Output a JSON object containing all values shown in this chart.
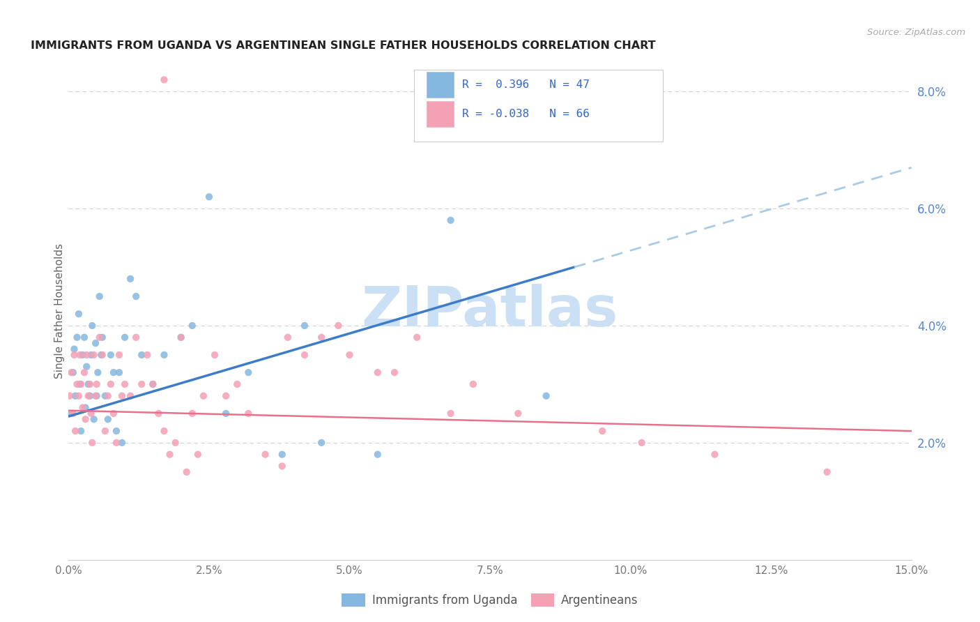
{
  "title": "IMMIGRANTS FROM UGANDA VS ARGENTINEAN SINGLE FATHER HOUSEHOLDS CORRELATION CHART",
  "source": "Source: ZipAtlas.com",
  "ylabel": "Single Father Households",
  "right_yticks": [
    "2.0%",
    "4.0%",
    "6.0%",
    "8.0%"
  ],
  "right_ytick_vals": [
    2.0,
    4.0,
    6.0,
    8.0
  ],
  "legend_label1": "Immigrants from Uganda",
  "legend_label2": "Argentineans",
  "R1": 0.396,
  "N1": 47,
  "R2": -0.038,
  "N2": 66,
  "color_blue": "#85b8e0",
  "color_pink": "#f4a0b5",
  "color_blue_line": "#3d7cc9",
  "color_pink_line": "#e8708a",
  "color_blue_dashed": "#a8cce8",
  "watermark": "ZIPatlas",
  "watermark_color": "#cce0f5",
  "background_color": "#ffffff",
  "xmin": 0.0,
  "xmax": 15.0,
  "ymin": 0.0,
  "ymax": 8.5,
  "xtick_vals": [
    0.0,
    2.5,
    5.0,
    7.5,
    10.0,
    12.5,
    15.0
  ],
  "xtick_labels": [
    "0.0%",
    "2.5%",
    "5.0%",
    "7.5%",
    "10.0%",
    "12.5%",
    "15.0%"
  ],
  "blue_line_x0": 0.0,
  "blue_line_y0": 2.45,
  "blue_line_x1": 9.0,
  "blue_line_y1": 5.0,
  "blue_dash_x0": 9.0,
  "blue_dash_y0": 5.0,
  "blue_dash_x1": 15.0,
  "blue_dash_y1": 6.7,
  "pink_line_x0": 0.0,
  "pink_line_y0": 2.55,
  "pink_line_x1": 15.0,
  "pink_line_y1": 2.2,
  "blue_pts_x": [
    0.05,
    0.08,
    0.1,
    0.12,
    0.15,
    0.18,
    0.2,
    0.22,
    0.25,
    0.28,
    0.3,
    0.32,
    0.35,
    0.38,
    0.4,
    0.42,
    0.45,
    0.48,
    0.5,
    0.52,
    0.55,
    0.58,
    0.6,
    0.65,
    0.7,
    0.75,
    0.8,
    0.85,
    0.9,
    0.95,
    1.0,
    1.1,
    1.2,
    1.3,
    1.5,
    1.7,
    2.0,
    2.2,
    2.5,
    2.8,
    3.2,
    3.8,
    4.5,
    5.5,
    6.8,
    8.5,
    4.2
  ],
  "blue_pts_y": [
    2.5,
    3.2,
    3.6,
    2.8,
    3.8,
    4.2,
    3.0,
    2.2,
    3.5,
    3.8,
    2.6,
    3.3,
    3.0,
    2.8,
    3.5,
    4.0,
    2.4,
    3.7,
    2.8,
    3.2,
    4.5,
    3.5,
    3.8,
    2.8,
    2.4,
    3.5,
    3.2,
    2.2,
    3.2,
    2.0,
    3.8,
    4.8,
    4.5,
    3.5,
    3.0,
    3.5,
    3.8,
    4.0,
    6.2,
    2.5,
    3.2,
    1.8,
    2.0,
    1.8,
    5.8,
    2.8,
    4.0
  ],
  "pink_pts_x": [
    0.02,
    0.05,
    0.08,
    0.1,
    0.12,
    0.15,
    0.18,
    0.2,
    0.22,
    0.25,
    0.28,
    0.3,
    0.32,
    0.35,
    0.38,
    0.4,
    0.42,
    0.45,
    0.48,
    0.5,
    0.55,
    0.6,
    0.65,
    0.7,
    0.75,
    0.8,
    0.85,
    0.9,
    0.95,
    1.0,
    1.1,
    1.2,
    1.3,
    1.4,
    1.5,
    1.6,
    1.7,
    1.8,
    1.9,
    2.0,
    2.2,
    2.4,
    2.6,
    2.8,
    3.0,
    3.2,
    3.5,
    3.8,
    4.2,
    4.5,
    5.0,
    5.5,
    6.2,
    6.8,
    7.2,
    8.0,
    9.5,
    10.2,
    11.5,
    13.5,
    2.1,
    2.3,
    4.8,
    3.9,
    5.8,
    1.7
  ],
  "pink_pts_y": [
    2.8,
    3.2,
    2.5,
    3.5,
    2.2,
    3.0,
    2.8,
    3.5,
    3.0,
    2.6,
    3.2,
    2.4,
    3.5,
    2.8,
    3.0,
    2.5,
    2.0,
    3.5,
    2.8,
    3.0,
    3.8,
    3.5,
    2.2,
    2.8,
    3.0,
    2.5,
    2.0,
    3.5,
    2.8,
    3.0,
    2.8,
    3.8,
    3.0,
    3.5,
    3.0,
    2.5,
    2.2,
    1.8,
    2.0,
    3.8,
    2.5,
    2.8,
    3.5,
    2.8,
    3.0,
    2.5,
    1.8,
    1.6,
    3.5,
    3.8,
    3.5,
    3.2,
    3.8,
    2.5,
    3.0,
    2.5,
    2.2,
    2.0,
    1.8,
    1.5,
    1.5,
    1.8,
    4.0,
    3.8,
    3.2,
    8.2
  ]
}
